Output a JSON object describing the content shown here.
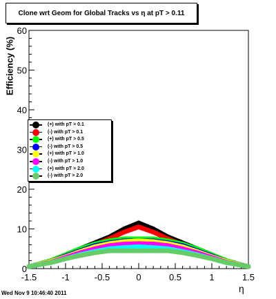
{
  "title": "Clone wrt Geom for Global Tracks vs   η at pT > 0.11",
  "timestamp": "Wed Nov  9 10:46:40 2011",
  "chart_data": {
    "type": "scatter",
    "xlabel": "η",
    "ylabel": "Efficiency (%)",
    "xlim": [
      -1.5,
      1.5
    ],
    "ylim": [
      0,
      60
    ],
    "xticks": [
      "-1.5",
      "-1",
      "-0.5",
      "0",
      "0.5",
      "1",
      "1.5"
    ],
    "yticks": [
      "0",
      "10",
      "20",
      "30",
      "40",
      "50",
      "60"
    ],
    "legend_position": "middle-left",
    "series": [
      {
        "name": "(+) with pT > 0.1",
        "color": "#000000",
        "x": [
          -1.5,
          -1.2,
          -1.0,
          -0.8,
          -0.6,
          -0.4,
          -0.2,
          0.0,
          0.2,
          0.4,
          0.6,
          0.8,
          1.0,
          1.2,
          1.5
        ],
        "y": [
          0.5,
          2.0,
          3.5,
          5.0,
          6.5,
          8.0,
          10.0,
          11.5,
          10.0,
          8.0,
          6.5,
          5.0,
          3.5,
          2.0,
          0.5
        ]
      },
      {
        "name": "(-) with pT > 0.1",
        "color": "#ff0000",
        "x": [
          -1.5,
          -1.2,
          -1.0,
          -0.8,
          -0.6,
          -0.4,
          -0.2,
          0.0,
          0.2,
          0.4,
          0.6,
          0.8,
          1.0,
          1.2,
          1.5
        ],
        "y": [
          0.5,
          1.8,
          3.2,
          4.5,
          6.0,
          7.5,
          9.2,
          10.5,
          9.2,
          7.5,
          6.0,
          4.5,
          3.2,
          1.8,
          0.5
        ]
      },
      {
        "name": "(+) with pT > 0.5",
        "color": "#00ff00",
        "x": [
          -1.5,
          -1.2,
          -1.0,
          -0.8,
          -0.6,
          -0.4,
          -0.2,
          0.0,
          0.2,
          0.4,
          0.6,
          0.8,
          1.0,
          1.2,
          1.5
        ],
        "y": [
          0.5,
          2.0,
          3.5,
          5.0,
          6.2,
          7.0,
          7.5,
          7.5,
          7.5,
          7.0,
          6.2,
          5.0,
          3.5,
          2.0,
          0.5
        ]
      },
      {
        "name": "(-) with pT > 0.5",
        "color": "#0000ff",
        "x": [
          -1.5,
          -1.2,
          -1.0,
          -0.8,
          -0.6,
          -0.4,
          -0.2,
          0.0,
          0.2,
          0.4,
          0.6,
          0.8,
          1.0,
          1.2,
          1.5
        ],
        "y": [
          0.5,
          1.8,
          3.2,
          4.5,
          5.8,
          6.5,
          7.0,
          7.0,
          7.0,
          6.5,
          5.8,
          4.5,
          3.2,
          1.8,
          0.5
        ]
      },
      {
        "name": "(+) with pT > 1.0",
        "color": "#ffff00",
        "x": [
          -1.5,
          -1.2,
          -1.0,
          -0.8,
          -0.6,
          -0.4,
          -0.2,
          0.0,
          0.2,
          0.4,
          0.6,
          0.8,
          1.0,
          1.2,
          1.5
        ],
        "y": [
          0.5,
          1.8,
          3.0,
          4.3,
          5.5,
          6.3,
          6.8,
          7.0,
          6.8,
          6.3,
          5.5,
          4.3,
          3.0,
          1.8,
          0.5
        ]
      },
      {
        "name": "(-) with pT > 1.0",
        "color": "#ff00ff",
        "x": [
          -1.5,
          -1.2,
          -1.0,
          -0.8,
          -0.6,
          -0.4,
          -0.2,
          0.0,
          0.2,
          0.4,
          0.6,
          0.8,
          1.0,
          1.2,
          1.5
        ],
        "y": [
          0.5,
          1.6,
          2.8,
          4.0,
          5.0,
          5.8,
          6.2,
          6.3,
          6.2,
          5.8,
          5.0,
          4.0,
          2.8,
          1.6,
          0.5
        ]
      },
      {
        "name": "(+) with pT > 2.0",
        "color": "#00ffff",
        "x": [
          -1.5,
          -1.2,
          -1.0,
          -0.8,
          -0.6,
          -0.4,
          -0.2,
          0.0,
          0.2,
          0.4,
          0.6,
          0.8,
          1.0,
          1.2,
          1.5
        ],
        "y": [
          0.5,
          1.5,
          2.5,
          3.5,
          4.3,
          5.0,
          5.3,
          5.5,
          5.3,
          5.0,
          4.3,
          3.5,
          2.5,
          1.5,
          0.5
        ]
      },
      {
        "name": "(-) with pT > 2.0",
        "color": "#66cc66",
        "x": [
          -1.5,
          -1.2,
          -1.0,
          -0.8,
          -0.6,
          -0.4,
          -0.2,
          0.0,
          0.2,
          0.4,
          0.6,
          0.8,
          1.0,
          1.2,
          1.5
        ],
        "y": [
          0.5,
          1.5,
          2.5,
          3.3,
          4.0,
          4.5,
          4.5,
          4.5,
          4.5,
          4.5,
          4.0,
          3.3,
          2.5,
          1.5,
          0.5
        ]
      }
    ]
  }
}
